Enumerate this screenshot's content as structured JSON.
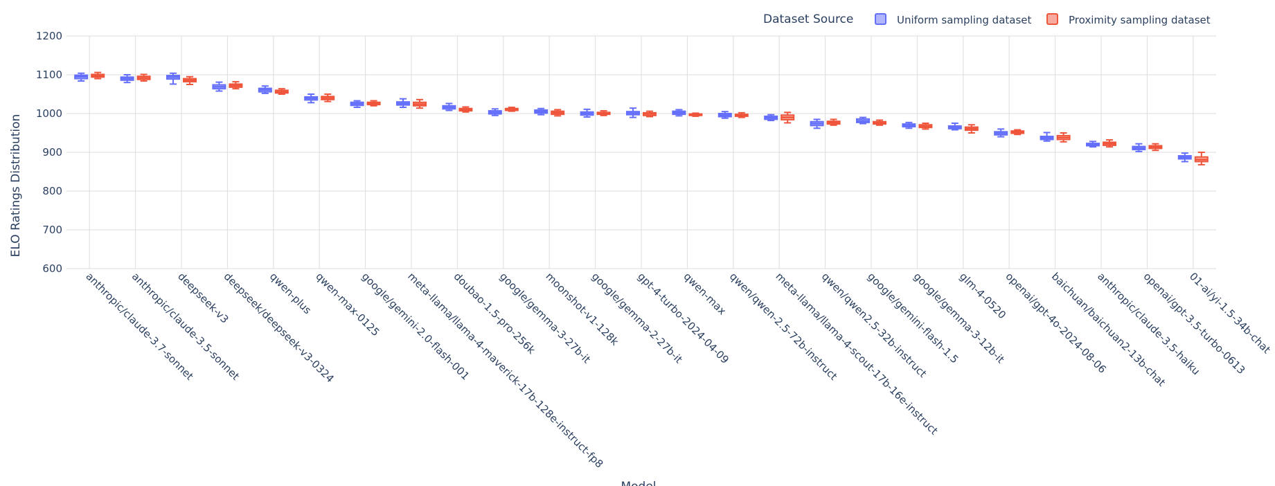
{
  "chart_data": {
    "type": "box",
    "xlabel": "Model",
    "ylabel": "ELO Ratings Distribution",
    "ylim": [
      600,
      1200
    ],
    "yticks": [
      600,
      700,
      800,
      900,
      1000,
      1100,
      1200
    ],
    "grid": true,
    "legend": {
      "title": "Dataset Source",
      "position": "top-right"
    },
    "categories": [
      "anthropic/claude-3.7-sonnet",
      "anthropic/claude-3.5-sonnet",
      "deepseek-v3",
      "deepseek/deepseek-v3-0324",
      "qwen-plus",
      "qwen-max-0125",
      "google/gemini-2.0-flash-001",
      "meta-llama/llama-4-maverick-17b-128e-instruct-fp8",
      "doubao-1.5-pro-256k",
      "google/gemma-3-27b-it",
      "moonshot-v1-128k",
      "google/gemma-2-27b-it",
      "gpt-4-turbo-2024-04-09",
      "qwen-max",
      "qwen/qwen-2.5-72b-instruct",
      "meta-llama/llama-4-scout-17b-16e-instruct",
      "qwen/qwen2.5-32b-instruct",
      "google/gemini-flash-1.5",
      "google/gemma-3-12b-it",
      "glm-4-0520",
      "openai/gpt-4o-2024-08-06",
      "baichuan/baichuan2-13b-chat",
      "anthropic/claude-3.5-haiku",
      "openai/gpt-3.5-turbo-0613",
      "01-ai/yi-1.5-34b-chat"
    ],
    "series": [
      {
        "name": "Uniform sampling dataset",
        "color": "#636efa",
        "boxes": [
          [
            1084,
            1090,
            1095,
            1099,
            1104
          ],
          [
            1080,
            1086,
            1090,
            1094,
            1100
          ],
          [
            1076,
            1089,
            1094,
            1098,
            1104
          ],
          [
            1058,
            1064,
            1069,
            1074,
            1081
          ],
          [
            1052,
            1056,
            1061,
            1065,
            1071
          ],
          [
            1028,
            1035,
            1039,
            1043,
            1050
          ],
          [
            1016,
            1021,
            1025,
            1029,
            1033
          ],
          [
            1016,
            1022,
            1026,
            1030,
            1038
          ],
          [
            1008,
            1012,
            1016,
            1020,
            1026
          ],
          [
            995,
            999,
            1003,
            1007,
            1012
          ],
          [
            997,
            1001,
            1005,
            1009,
            1013
          ],
          [
            991,
            996,
            1000,
            1004,
            1011
          ],
          [
            990,
            997,
            1001,
            1005,
            1014
          ],
          [
            994,
            998,
            1002,
            1006,
            1010
          ],
          [
            988,
            992,
            996,
            1000,
            1005
          ],
          [
            982,
            985,
            989,
            993,
            997
          ],
          [
            962,
            969,
            974,
            979,
            985
          ],
          [
            974,
            977,
            981,
            986,
            990
          ],
          [
            962,
            966,
            969,
            973,
            977
          ],
          [
            958,
            961,
            964,
            968,
            975
          ],
          [
            940,
            945,
            949,
            953,
            960
          ],
          [
            929,
            933,
            937,
            941,
            951
          ],
          [
            914,
            917,
            920,
            923,
            928
          ],
          [
            902,
            907,
            911,
            915,
            922
          ],
          [
            876,
            883,
            887,
            891,
            898
          ]
        ]
      },
      {
        "name": "Proximity sampling dataset",
        "color": "#ef553b",
        "boxes": [
          [
            1090,
            1094,
            1097,
            1101,
            1106
          ],
          [
            1084,
            1088,
            1092,
            1096,
            1101
          ],
          [
            1075,
            1082,
            1086,
            1090,
            1095
          ],
          [
            1064,
            1068,
            1072,
            1076,
            1082
          ],
          [
            1050,
            1053,
            1056,
            1060,
            1064
          ],
          [
            1031,
            1036,
            1040,
            1044,
            1050
          ],
          [
            1020,
            1023,
            1026,
            1029,
            1033
          ],
          [
            1014,
            1020,
            1024,
            1029,
            1036
          ],
          [
            1004,
            1007,
            1010,
            1013,
            1017
          ],
          [
            1006,
            1008,
            1011,
            1013,
            1016
          ],
          [
            994,
            998,
            1002,
            1006,
            1010
          ],
          [
            995,
            998,
            1001,
            1003,
            1007
          ],
          [
            992,
            995,
            999,
            1002,
            1006
          ],
          [
            993,
            995,
            997,
            999,
            1001
          ],
          [
            990,
            993,
            996,
            998,
            1002
          ],
          [
            976,
            984,
            990,
            996,
            1003
          ],
          [
            970,
            973,
            977,
            980,
            985
          ],
          [
            970,
            973,
            976,
            979,
            983
          ],
          [
            960,
            964,
            967,
            971,
            975
          ],
          [
            950,
            957,
            961,
            965,
            971
          ],
          [
            946,
            949,
            952,
            955,
            958
          ],
          [
            927,
            933,
            938,
            943,
            950
          ],
          [
            914,
            918,
            922,
            926,
            932
          ],
          [
            905,
            910,
            913,
            917,
            922
          ],
          [
            868,
            876,
            881,
            888,
            900
          ]
        ]
      }
    ]
  }
}
